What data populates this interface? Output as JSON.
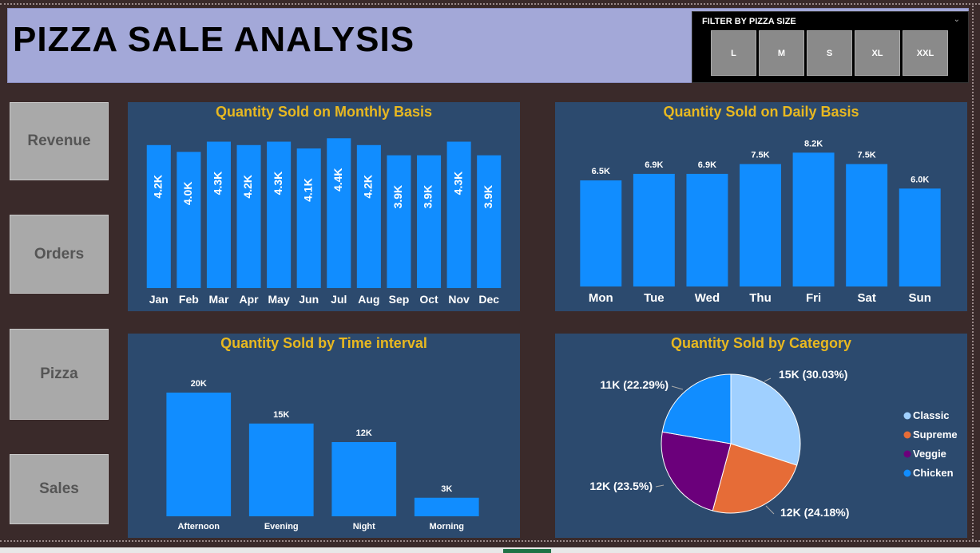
{
  "header": {
    "title": "PIZZA SALE ANALYSIS",
    "filter_title": "FILTER BY PIZZA SIZE",
    "sizes": [
      "L",
      "M",
      "S",
      "XL",
      "XXL"
    ]
  },
  "nav": {
    "items": [
      "Revenue",
      "Orders",
      "Pizza",
      "Sales"
    ]
  },
  "colors": {
    "bar": "#118dff",
    "panel": "#2c4a6e",
    "title": "#e8b820"
  },
  "chart_data": [
    {
      "type": "bar",
      "title": "Quantity Sold on Monthly Basis",
      "categories": [
        "Jan",
        "Feb",
        "Mar",
        "Apr",
        "May",
        "Jun",
        "Jul",
        "Aug",
        "Sep",
        "Oct",
        "Nov",
        "Dec"
      ],
      "values": [
        4.2,
        4.0,
        4.3,
        4.2,
        4.3,
        4.1,
        4.4,
        4.2,
        3.9,
        3.9,
        4.3,
        3.9
      ],
      "labels": [
        "4.2K",
        "4.0K",
        "4.3K",
        "4.2K",
        "4.3K",
        "4.1K",
        "4.4K",
        "4.2K",
        "3.9K",
        "3.9K",
        "4.3K",
        "3.9K"
      ],
      "unit": "K"
    },
    {
      "type": "bar",
      "title": "Quantity Sold on Daily Basis",
      "categories": [
        "Mon",
        "Tue",
        "Wed",
        "Thu",
        "Fri",
        "Sat",
        "Sun"
      ],
      "values": [
        6.5,
        6.9,
        6.9,
        7.5,
        8.2,
        7.5,
        6.0
      ],
      "labels": [
        "6.5K",
        "6.9K",
        "6.9K",
        "7.5K",
        "8.2K",
        "7.5K",
        "6.0K"
      ],
      "unit": "K"
    },
    {
      "type": "bar",
      "title": "Quantity Sold by Time interval",
      "categories": [
        "Afternoon",
        "Evening",
        "Night",
        "Morning"
      ],
      "values": [
        20,
        15,
        12,
        3
      ],
      "labels": [
        "20K",
        "15K",
        "12K",
        "3K"
      ],
      "unit": "K"
    },
    {
      "type": "pie",
      "title": "Quantity Sold by Category",
      "categories": [
        "Classic",
        "Supreme",
        "Veggie",
        "Chicken"
      ],
      "values": [
        30.03,
        24.18,
        23.5,
        22.29
      ],
      "labels": [
        "15K (30.03%)",
        "12K (24.18%)",
        "12K (23.5%)",
        "11K (22.29%)"
      ],
      "colors": [
        "#a0d0ff",
        "#e66c37",
        "#6b007b",
        "#118dff"
      ],
      "legend_position": "right"
    }
  ]
}
